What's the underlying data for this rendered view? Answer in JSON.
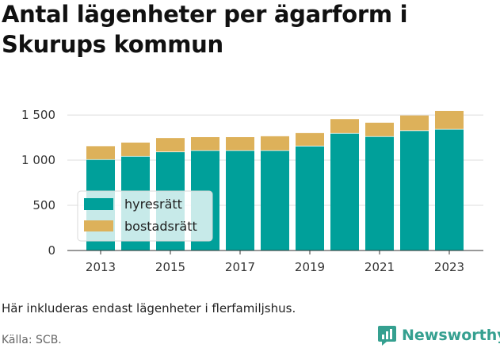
{
  "title": "Antal lägenheter per ägarform i Skurups kommun",
  "note": "Här inkluderas endast lägenheter i flerfamiljshus.",
  "source": "Källa: SCB.",
  "brand": {
    "name": "Newsworthy",
    "icon": "newsworthy-logo-icon",
    "color": "#35a090"
  },
  "chart_data": {
    "type": "bar",
    "stacked": true,
    "categories": [
      "2013",
      "2014",
      "2015",
      "2016",
      "2017",
      "2018",
      "2019",
      "2020",
      "2021",
      "2022",
      "2023"
    ],
    "x_tick_labels": [
      "2013",
      "2015",
      "2017",
      "2019",
      "2021",
      "2023"
    ],
    "y_tick_labels": [
      "0",
      "500",
      "1 000",
      "1 500"
    ],
    "ylim": [
      0,
      1650
    ],
    "grid": true,
    "legend_position": "left-center",
    "series": [
      {
        "name": "hyresrätt",
        "color": "#00a09a",
        "values": [
          1010,
          1045,
          1095,
          1110,
          1110,
          1110,
          1160,
          1300,
          1265,
          1330,
          1345
        ]
      },
      {
        "name": "bostadsrätt",
        "color": "#ddb15a",
        "values": [
          145,
          150,
          150,
          145,
          145,
          155,
          140,
          155,
          150,
          165,
          200
        ]
      }
    ]
  }
}
